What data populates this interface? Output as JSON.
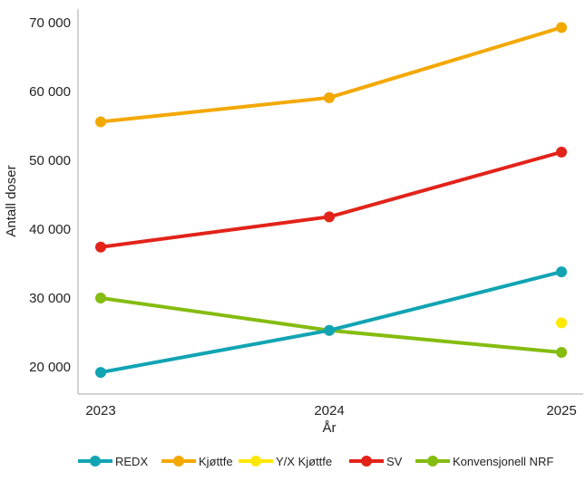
{
  "chart_data": {
    "type": "line",
    "title": "",
    "xlabel": "År",
    "ylabel": "Antall doser",
    "x": [
      "2023",
      "2024",
      "2025"
    ],
    "ylim": [
      18000,
      73000
    ],
    "yticks": [
      20000,
      30000,
      40000,
      50000,
      60000,
      70000
    ],
    "ytick_labels": [
      "20 000",
      "30 000",
      "40 000",
      "50 000",
      "60 000",
      "70 000"
    ],
    "grid": false,
    "legend_position": "bottom",
    "series": [
      {
        "name": "REDX",
        "color": "#11a4b3",
        "values": [
          19200,
          25300,
          33800
        ]
      },
      {
        "name": "Kjøttfe",
        "color": "#f3a800",
        "values": [
          55600,
          59100,
          69300
        ]
      },
      {
        "name": "Y/X Kjøttfe",
        "color": "#ffe800",
        "values": [
          null,
          null,
          26400
        ]
      },
      {
        "name": "SV",
        "color": "#e2231a",
        "values": [
          37400,
          41800,
          51200
        ]
      },
      {
        "name": "Konvensjonell NRF",
        "color": "#84bc10",
        "values": [
          30000,
          25300,
          22100
        ]
      }
    ]
  }
}
